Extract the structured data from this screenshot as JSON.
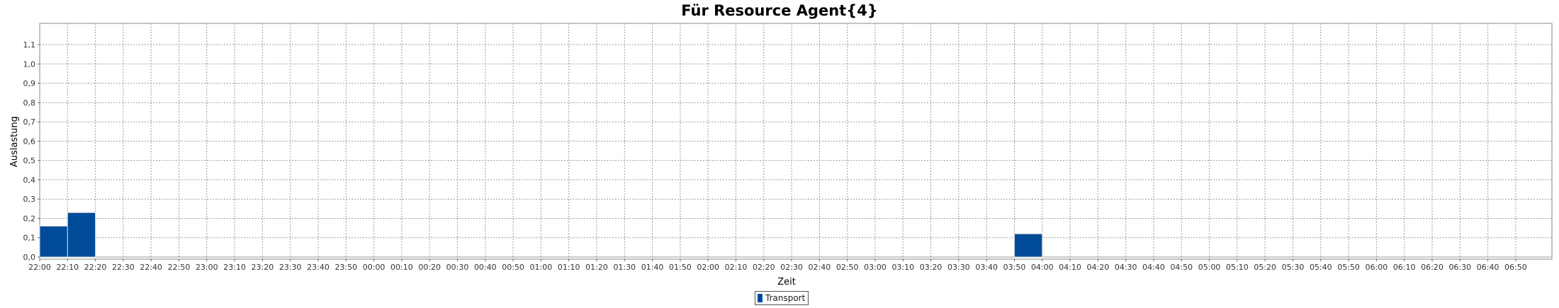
{
  "chart_data": {
    "type": "bar",
    "title": "Für Resource Agent{4}",
    "xlabel": "Zeit",
    "ylabel": "Auslastung",
    "ylim": [
      0,
      1.15
    ],
    "y_ticks": [
      "0,0",
      "0,1",
      "0,2",
      "0,3",
      "0,4",
      "0,5",
      "0,6",
      "0,7",
      "0,8",
      "0,9",
      "1,0",
      "1,1"
    ],
    "categories": [
      "22:00",
      "22:10",
      "22:20",
      "22:30",
      "22:40",
      "22:50",
      "23:00",
      "23:10",
      "23:20",
      "23:30",
      "23:40",
      "23:50",
      "00:00",
      "00:10",
      "00:20",
      "00:30",
      "00:40",
      "00:50",
      "01:00",
      "01:10",
      "01:20",
      "01:30",
      "01:40",
      "01:50",
      "02:00",
      "02:10",
      "02:20",
      "02:30",
      "02:40",
      "02:50",
      "03:00",
      "03:10",
      "03:20",
      "03:30",
      "03:40",
      "03:50",
      "04:00",
      "04:10",
      "04:20",
      "04:30",
      "04:40",
      "04:50",
      "05:00",
      "05:10",
      "05:20",
      "05:30",
      "05:40",
      "05:50",
      "06:00",
      "06:10",
      "06:20",
      "06:30",
      "06:40",
      "06:50"
    ],
    "series": [
      {
        "name": "Transport",
        "color": "#004c99",
        "values": [
          0.16,
          0.23,
          0,
          0,
          0,
          0,
          0,
          0,
          0,
          0,
          0,
          0,
          0,
          0,
          0,
          0,
          0,
          0,
          0,
          0,
          0,
          0,
          0,
          0,
          0,
          0,
          0,
          0,
          0,
          0,
          0,
          0,
          0,
          0,
          0,
          0.12,
          0,
          0,
          0,
          0,
          0,
          0,
          0,
          0,
          0,
          0,
          0,
          0,
          0,
          0,
          0,
          0,
          0,
          0
        ]
      }
    ],
    "grid": true,
    "legend_position": "bottom"
  }
}
